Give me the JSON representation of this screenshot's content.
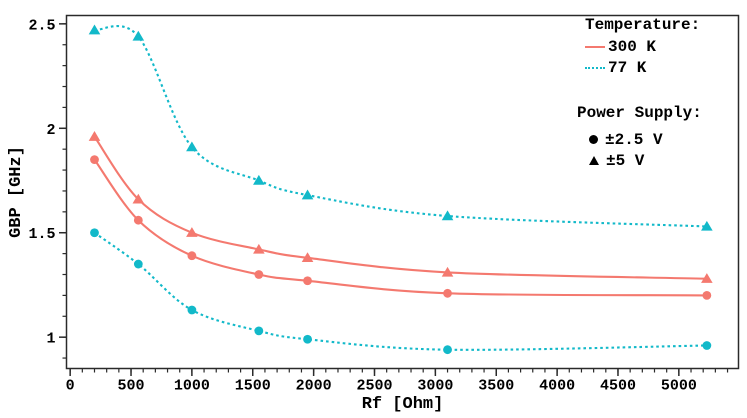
{
  "figure": {
    "colors": {
      "temp_300k": "#f4796f",
      "temp_77k": "#12b9c9",
      "marker_black": "#000000",
      "frame": "#2a2a2a",
      "background": "#ffffff"
    },
    "legend": {
      "temperature_title": "Temperature:",
      "temp_entries": [
        {
          "label": "300 K",
          "style": "solid",
          "color": "#f4796f"
        },
        {
          "label": "77 K",
          "style": "dotted",
          "color": "#12b9c9"
        }
      ],
      "power_title": "Power Supply:",
      "power_entries": [
        {
          "label": "±2.5 V",
          "marker": "circle"
        },
        {
          "label": "±5 V",
          "marker": "triangle"
        }
      ]
    }
  },
  "chart_data": {
    "type": "line",
    "title": "",
    "xlabel": "Rf [Ohm]",
    "ylabel": "GBP [GHz]",
    "x": [
      200,
      560,
      1000,
      1550,
      1950,
      3100,
      5230
    ],
    "series": [
      {
        "name": "77 K, ±5 V",
        "temperature": "77 K",
        "supply": "±5 V",
        "color": "#12b9c9",
        "dash": "dotted",
        "marker": "triangle",
        "values": [
          2.47,
          2.44,
          1.91,
          1.75,
          1.68,
          1.58,
          1.53
        ]
      },
      {
        "name": "300 K, ±5 V",
        "temperature": "300 K",
        "supply": "±5 V",
        "color": "#f4796f",
        "dash": "solid",
        "marker": "triangle",
        "values": [
          1.96,
          1.66,
          1.5,
          1.42,
          1.38,
          1.31,
          1.28
        ]
      },
      {
        "name": "300 K, ±2.5 V",
        "temperature": "300 K",
        "supply": "±2.5 V",
        "color": "#f4796f",
        "dash": "solid",
        "marker": "circle",
        "values": [
          1.85,
          1.56,
          1.39,
          1.3,
          1.27,
          1.21,
          1.2
        ]
      },
      {
        "name": "77 K, ±2.5 V",
        "temperature": "77 K",
        "supply": "±2.5 V",
        "color": "#12b9c9",
        "dash": "dotted",
        "marker": "circle",
        "values": [
          1.5,
          1.35,
          1.13,
          1.03,
          0.99,
          0.94,
          0.96
        ]
      }
    ],
    "xlim": [
      -30,
      5490
    ],
    "ylim": [
      0.85,
      2.54
    ],
    "x_major_ticks": [
      0,
      500,
      1000,
      1500,
      2000,
      2500,
      3000,
      3500,
      4000,
      4500,
      5000
    ],
    "x_tick_labels": [
      "0",
      "500",
      "1000",
      "1500",
      "2000",
      "2500",
      "3000",
      "3500",
      "4000",
      "4500",
      "5000"
    ],
    "x_minor_step": 100,
    "x_minor_max": 5400,
    "y_major_ticks": [
      1,
      1.5,
      2,
      2.5
    ],
    "y_tick_labels": [
      "1",
      "1.5",
      "2",
      "2.5"
    ],
    "y_minor_step": 0.1,
    "y_minor_min": 0.9,
    "y_minor_max": 2.5,
    "grid": false,
    "legend_position": "upper right"
  }
}
